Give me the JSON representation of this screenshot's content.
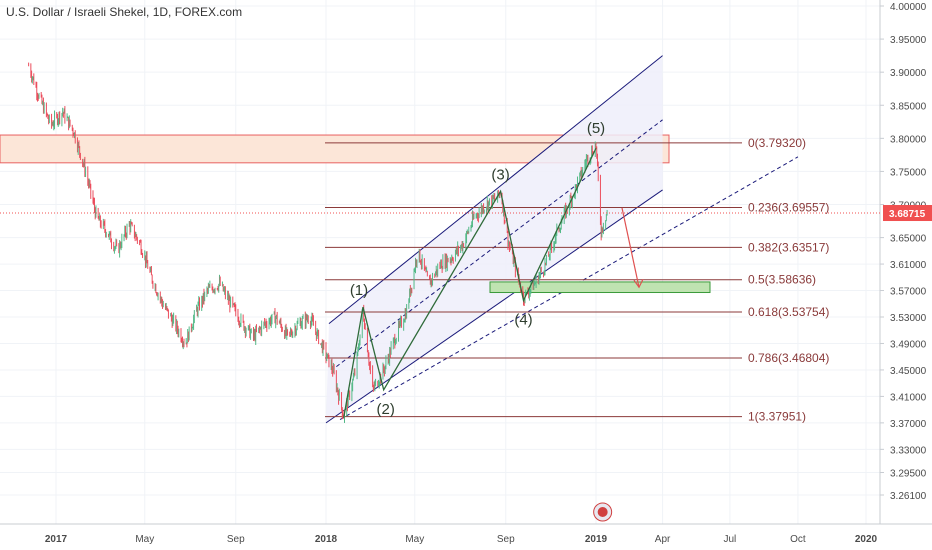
{
  "title": "U.S. Dollar / Israeli Shekel, 1D, FOREX.com",
  "current_price": "3.68715",
  "chart_data": {
    "type": "line",
    "title": "U.S. Dollar / Israeli Shekel, 1D, FOREX.com",
    "x_ticks": [
      "2017",
      "May",
      "Sep",
      "2018",
      "May",
      "Sep",
      "2019",
      "Apr",
      "Jul",
      "Oct",
      "2020"
    ],
    "y_ticks": [
      "4.00000",
      "3.95000",
      "3.90000",
      "3.85000",
      "3.80000",
      "3.75000",
      "3.70000",
      "3.65000",
      "3.61000",
      "3.57000",
      "3.53000",
      "3.49000",
      "3.45000",
      "3.41000",
      "3.37000",
      "3.33000",
      "3.29500",
      "3.26100"
    ],
    "ylim": [
      3.255,
      4.005
    ],
    "series": [
      {
        "x": [
          "2016-11-25",
          "2016-12-10",
          "2016-12-25",
          "2017-01-10",
          "2017-01-25",
          "2017-02-10",
          "2017-02-25",
          "2017-03-10",
          "2017-03-25",
          "2017-04-10",
          "2017-04-25",
          "2017-05-10",
          "2017-05-25",
          "2017-06-10",
          "2017-06-25",
          "2017-07-10",
          "2017-07-25",
          "2017-08-10",
          "2017-08-25",
          "2017-09-10",
          "2017-09-25",
          "2017-10-10",
          "2017-10-25",
          "2017-11-10",
          "2017-11-25",
          "2017-12-10",
          "2017-12-25",
          "2018-01-10",
          "2018-01-25",
          "2018-02-10",
          "2018-02-20",
          "2018-03-05",
          "2018-03-20",
          "2018-04-05",
          "2018-04-20",
          "2018-05-05",
          "2018-05-20",
          "2018-06-05",
          "2018-06-20",
          "2018-07-05",
          "2018-07-20",
          "2018-08-05",
          "2018-08-20",
          "2018-08-25",
          "2018-09-05",
          "2018-09-15",
          "2018-09-25",
          "2018-10-10",
          "2018-10-25",
          "2018-11-10",
          "2018-11-25",
          "2018-12-10",
          "2018-12-20",
          "2019-01-01",
          "2019-01-08",
          "2019-01-16"
        ],
        "y": [
          3.91,
          3.86,
          3.82,
          3.84,
          3.81,
          3.75,
          3.68,
          3.66,
          3.63,
          3.67,
          3.64,
          3.59,
          3.55,
          3.52,
          3.49,
          3.54,
          3.57,
          3.58,
          3.55,
          3.52,
          3.5,
          3.52,
          3.53,
          3.5,
          3.52,
          3.53,
          3.49,
          3.45,
          3.38,
          3.45,
          3.54,
          3.42,
          3.45,
          3.5,
          3.54,
          3.63,
          3.58,
          3.61,
          3.62,
          3.64,
          3.68,
          3.7,
          3.71,
          3.72,
          3.64,
          3.6,
          3.56,
          3.58,
          3.61,
          3.66,
          3.7,
          3.74,
          3.77,
          3.79,
          3.66,
          3.69
        ]
      }
    ],
    "fib_levels": [
      {
        "label": "0(3.79320)",
        "value": 3.7932
      },
      {
        "label": "0.236(3.69557)",
        "value": 3.69557
      },
      {
        "label": "0.382(3.63517)",
        "value": 3.63517
      },
      {
        "label": "0.5(3.58636)",
        "value": 3.58636
      },
      {
        "label": "0.618(3.53754)",
        "value": 3.53754
      },
      {
        "label": "0.786(3.46804)",
        "value": 3.46804
      },
      {
        "label": "1(3.37951)",
        "value": 3.37951
      }
    ],
    "waves": [
      {
        "label": "(1)",
        "x": "2018-02-20",
        "y": 3.545
      },
      {
        "label": "(2)",
        "x": "2018-03-20",
        "y": 3.42
      },
      {
        "label": "(3)",
        "x": "2018-08-25",
        "y": 3.72
      },
      {
        "label": "(4)",
        "x": "2018-09-25",
        "y": 3.555
      },
      {
        "label": "(5)",
        "x": "2019-01-01",
        "y": 3.79
      }
    ],
    "colors": {
      "up": "#53b987",
      "down": "#eb4d5c",
      "price_line": "#4f6077",
      "channel": "#1a1a7a",
      "channel_fill": "#eeeefa",
      "fib_line": "#8b3a3a",
      "resistance_box": "#fce6d8",
      "resistance_border": "#e86060",
      "target_box": "#bfe3b1",
      "target_border": "#3a9a3a",
      "arrow": "#e05050",
      "price_tag": "#f05050"
    },
    "grid": true
  }
}
